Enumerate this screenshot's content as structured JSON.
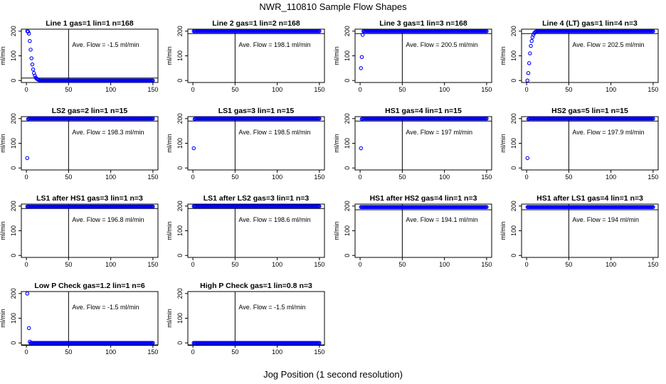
{
  "title": "NWR_110810  Sample Flow Shapes",
  "xlabel": "Jog Position (1 second resolution)",
  "ylabel": "ml/min",
  "point_color": "#0000ff",
  "chart_data": [
    {
      "type": "scatter",
      "title": "Line 1 gas=1 lin=1 n=168",
      "annotation": "Ave. Flow =  -1.5  ml/min",
      "profile": "decay",
      "start": [
        [
          1,
          200
        ],
        [
          2,
          198
        ],
        [
          3,
          190
        ],
        [
          4,
          160
        ],
        [
          5,
          125
        ],
        [
          6,
          90
        ],
        [
          7,
          65
        ],
        [
          8,
          45
        ],
        [
          9,
          30
        ],
        [
          10,
          20
        ],
        [
          11,
          12
        ],
        [
          12,
          8
        ],
        [
          13,
          5
        ],
        [
          14,
          3
        ],
        [
          15,
          2
        ]
      ],
      "rest_value": 0,
      "xlim": [
        0,
        150
      ],
      "ylim": [
        0,
        200
      ],
      "xticks": [
        0,
        50,
        100,
        150
      ],
      "yticks": [
        0,
        100,
        200
      ],
      "vline": 50,
      "hline": 10
    },
    {
      "type": "scatter",
      "title": "Line 2 gas=1 lin=2 n=168",
      "annotation": "Ave. Flow =  198.1  ml/min",
      "profile": "flat",
      "start": [],
      "rest_value": 200,
      "xlim": [
        0,
        150
      ],
      "ylim": [
        0,
        200
      ],
      "xticks": [
        0,
        50,
        100,
        150
      ],
      "yticks": [
        0,
        100,
        200
      ],
      "vline": 50,
      "hline": 190
    },
    {
      "type": "scatter",
      "title": "Line 3 gas=1 lin=3 n=168",
      "annotation": "Ave. Flow =  200.5  ml/min",
      "profile": "rise",
      "start": [
        [
          1,
          50
        ],
        [
          2,
          95
        ],
        [
          3,
          185
        ]
      ],
      "rest_value": 200,
      "xlim": [
        0,
        150
      ],
      "ylim": [
        0,
        200
      ],
      "xticks": [
        0,
        50,
        100,
        150
      ],
      "yticks": [
        0,
        100,
        200
      ],
      "vline": 50,
      "hline": 190
    },
    {
      "type": "scatter",
      "title": "Line 4 (LT) gas=1 lin=4 n=3",
      "annotation": "Ave. Flow =  202.5  ml/min",
      "profile": "rise",
      "start": [
        [
          1,
          0
        ],
        [
          2,
          30
        ],
        [
          3,
          70
        ],
        [
          4,
          110
        ],
        [
          5,
          140
        ],
        [
          6,
          160
        ],
        [
          7,
          175
        ],
        [
          8,
          185
        ],
        [
          9,
          192
        ],
        [
          10,
          196
        ],
        [
          11,
          198
        ],
        [
          12,
          199
        ]
      ],
      "rest_value": 200,
      "xlim": [
        0,
        150
      ],
      "ylim": [
        0,
        200
      ],
      "xticks": [
        0,
        50,
        100,
        150
      ],
      "yticks": [
        0,
        100,
        200
      ],
      "vline": 50,
      "hline": 190
    },
    {
      "type": "scatter",
      "title": "LS2 gas=2 lin=1 n=15",
      "annotation": "Ave. Flow =  198.3  ml/min",
      "profile": "rise",
      "start": [
        [
          1,
          40
        ],
        [
          2,
          198
        ]
      ],
      "rest_value": 200,
      "xlim": [
        0,
        150
      ],
      "ylim": [
        0,
        200
      ],
      "xticks": [
        0,
        50,
        100,
        150
      ],
      "yticks": [
        0,
        100,
        200
      ],
      "vline": 50,
      "hline": 190
    },
    {
      "type": "scatter",
      "title": "LS1 gas=3 lin=1 n=15",
      "annotation": "Ave. Flow =  198.5  ml/min",
      "profile": "rise",
      "start": [
        [
          1,
          80
        ],
        [
          2,
          198
        ]
      ],
      "rest_value": 200,
      "xlim": [
        0,
        150
      ],
      "ylim": [
        0,
        200
      ],
      "xticks": [
        0,
        50,
        100,
        150
      ],
      "yticks": [
        0,
        100,
        200
      ],
      "vline": 50,
      "hline": 190
    },
    {
      "type": "scatter",
      "title": "HS1 gas=4 lin=1 n=15",
      "annotation": "Ave. Flow =  197  ml/min",
      "profile": "rise",
      "start": [
        [
          1,
          80
        ],
        [
          2,
          198
        ]
      ],
      "rest_value": 200,
      "xlim": [
        0,
        150
      ],
      "ylim": [
        0,
        200
      ],
      "xticks": [
        0,
        50,
        100,
        150
      ],
      "yticks": [
        0,
        100,
        200
      ],
      "vline": 50,
      "hline": 190
    },
    {
      "type": "scatter",
      "title": "HS2 gas=5 lin=1 n=15",
      "annotation": "Ave. Flow =  197.9  ml/min",
      "profile": "rise",
      "start": [
        [
          1,
          40
        ],
        [
          2,
          198
        ]
      ],
      "rest_value": 200,
      "xlim": [
        0,
        150
      ],
      "ylim": [
        0,
        200
      ],
      "xticks": [
        0,
        50,
        100,
        150
      ],
      "yticks": [
        0,
        100,
        200
      ],
      "vline": 50,
      "hline": 190
    },
    {
      "type": "scatter",
      "title": "LS1 after HS1 gas=3 lin=1 n=3",
      "annotation": "Ave. Flow =  196.8  ml/min",
      "profile": "flat",
      "start": [],
      "rest_value": 198,
      "xlim": [
        0,
        150
      ],
      "ylim": [
        0,
        200
      ],
      "xticks": [
        0,
        50,
        100,
        150
      ],
      "yticks": [
        0,
        100,
        200
      ],
      "vline": 50,
      "hline": 190
    },
    {
      "type": "scatter",
      "title": "LS1 after LS2 gas=3 lin=1 n=3",
      "annotation": "Ave. Flow =  198.6  ml/min",
      "profile": "flat",
      "start": [],
      "rest_value": 199,
      "xlim": [
        0,
        150
      ],
      "ylim": [
        0,
        200
      ],
      "xticks": [
        0,
        50,
        100,
        150
      ],
      "yticks": [
        0,
        100,
        200
      ],
      "vline": 50,
      "hline": 190
    },
    {
      "type": "scatter",
      "title": "HS1 after HS2 gas=4 lin=1 n=3",
      "annotation": "Ave. Flow =  194.1  ml/min",
      "profile": "flat",
      "start": [],
      "rest_value": 196,
      "xlim": [
        0,
        150
      ],
      "ylim": [
        0,
        200
      ],
      "xticks": [
        0,
        50,
        100,
        150
      ],
      "yticks": [
        0,
        100,
        200
      ],
      "vline": 50,
      "hline": 185
    },
    {
      "type": "scatter",
      "title": "HS1 after LS1 gas=4 lin=1 n=3",
      "annotation": "Ave. Flow =  194  ml/min",
      "profile": "flat",
      "start": [],
      "rest_value": 196,
      "xlim": [
        0,
        150
      ],
      "ylim": [
        0,
        200
      ],
      "xticks": [
        0,
        50,
        100,
        150
      ],
      "yticks": [
        0,
        100,
        200
      ],
      "vline": 50,
      "hline": 185
    },
    {
      "type": "scatter",
      "title": "Low P Check gas=1.2 lin=1 n=6",
      "annotation": "Ave. Flow =  -1.5  ml/min",
      "profile": "decay",
      "start": [
        [
          1,
          200
        ],
        [
          3,
          60
        ],
        [
          4,
          5
        ],
        [
          5,
          0
        ]
      ],
      "rest_value": 0,
      "xlim": [
        0,
        150
      ],
      "ylim": [
        0,
        200
      ],
      "xticks": [
        0,
        50,
        100,
        150
      ],
      "yticks": [
        0,
        100,
        200
      ],
      "vline": 50,
      "hline": -10
    },
    {
      "type": "scatter",
      "title": "High P Check gas=1 lin=0.8 n=3",
      "annotation": "Ave. Flow =  -1.5  ml/min",
      "profile": "flat",
      "start": [],
      "rest_value": 0,
      "xlim": [
        0,
        150
      ],
      "ylim": [
        0,
        200
      ],
      "xticks": [
        0,
        50,
        100,
        150
      ],
      "yticks": [
        0,
        100,
        200
      ],
      "vline": 50,
      "hline": -10
    }
  ]
}
